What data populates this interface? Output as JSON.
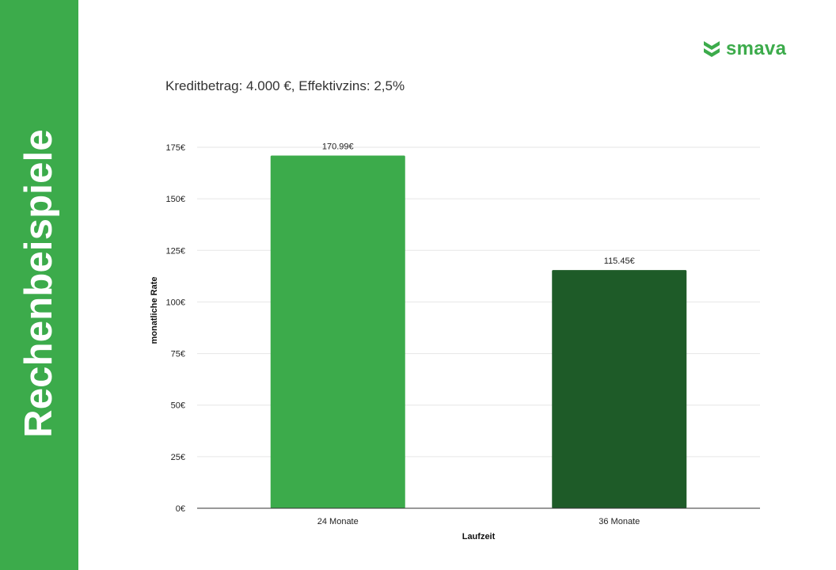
{
  "sidebar": {
    "title": "Rechenbeispiele"
  },
  "logo": {
    "text": "smava",
    "icon": "smava-chevron-logo-icon"
  },
  "colors": {
    "sidebar": "#3cab4b",
    "bar_24": "#3cab4b",
    "bar_36": "#1e5b28",
    "grid": "#e6e6e6"
  },
  "chart_data": {
    "type": "bar",
    "title": "Kreditbetrag: 4.000 €, Effektivzins: 2,5%",
    "categories": [
      "24 Monate",
      "36 Monate"
    ],
    "values": [
      170.99,
      115.45
    ],
    "data_labels": [
      "170.99€",
      "115.45€"
    ],
    "bar_colors": [
      "#3cab4b",
      "#1e5b28"
    ],
    "xlabel": "Laufzeit",
    "ylabel": "monatliche Rate",
    "ylim": [
      0,
      175
    ],
    "yticks": [
      0,
      25,
      50,
      75,
      100,
      125,
      150,
      175
    ],
    "ytick_labels": [
      "0€",
      "25€",
      "50€",
      "75€",
      "100€",
      "125€",
      "150€",
      "175€"
    ],
    "grid": true,
    "legend": "none"
  }
}
